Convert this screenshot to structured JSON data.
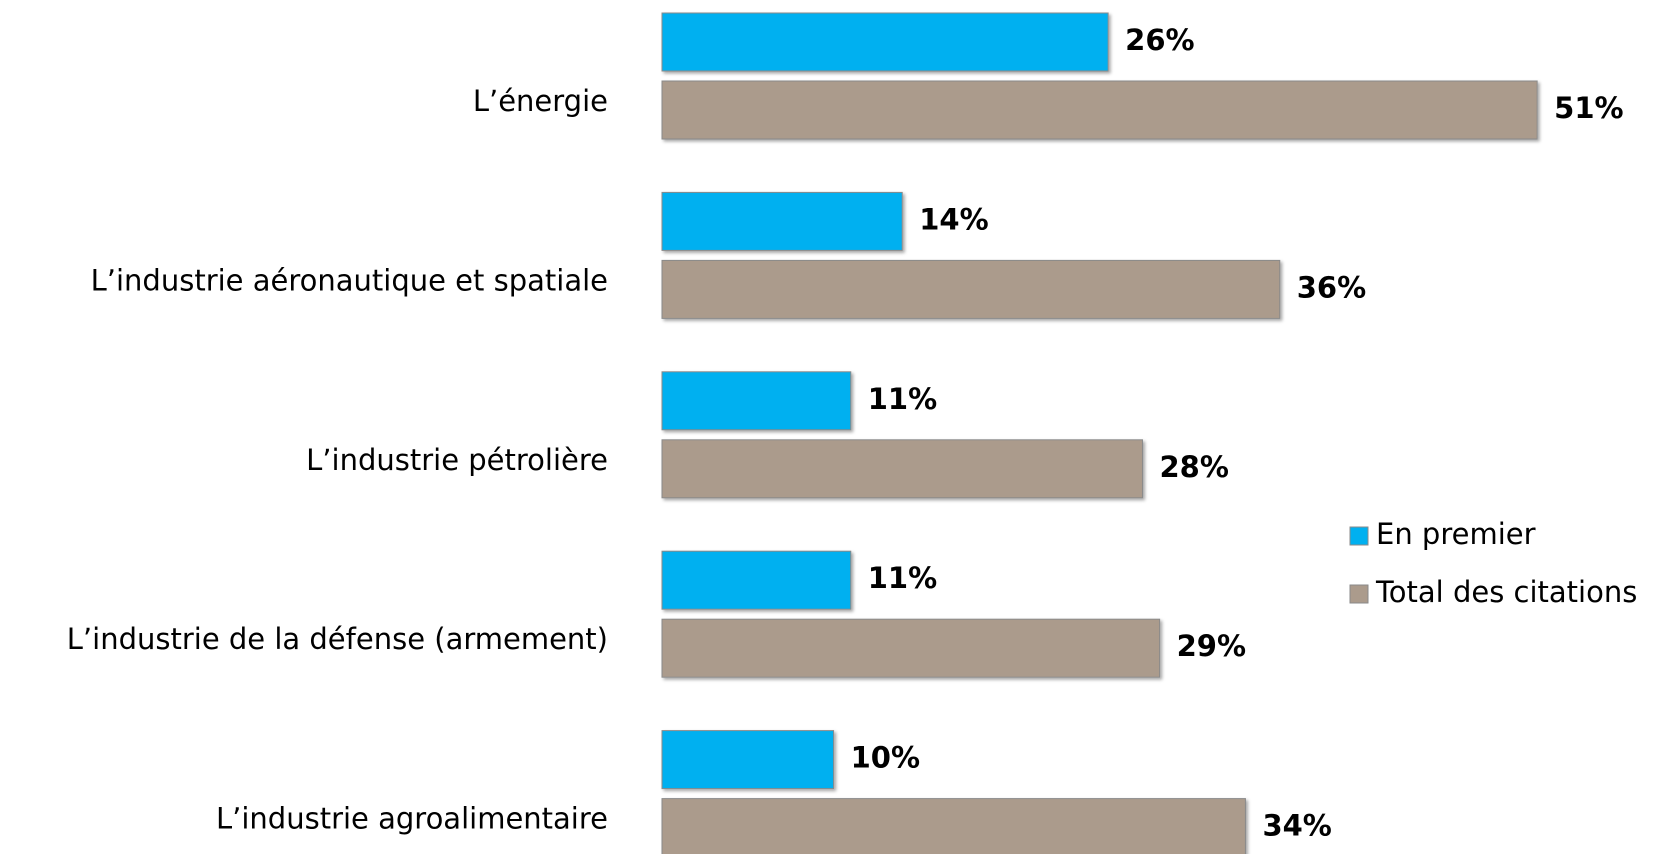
{
  "chart_data": {
    "type": "bar",
    "orientation": "horizontal",
    "categories": [
      "L’énergie",
      "L’industrie aéronautique et spatiale",
      "L’industrie pétrolière",
      "L’industrie de la défense (armement)",
      "L’industrie agroalimentaire"
    ],
    "series": [
      {
        "name": "En premier",
        "color": "#00b0f0",
        "values": [
          26,
          14,
          11,
          11,
          10
        ],
        "value_labels": [
          "26%",
          "14%",
          "11%",
          "11%",
          "10%"
        ]
      },
      {
        "name": "Total des citations",
        "color": "#ab9b8c",
        "values": [
          51,
          36,
          28,
          29,
          34
        ],
        "value_labels": [
          "51%",
          "36%",
          "28%",
          "29%",
          "34%"
        ]
      }
    ],
    "legend": "right"
  }
}
